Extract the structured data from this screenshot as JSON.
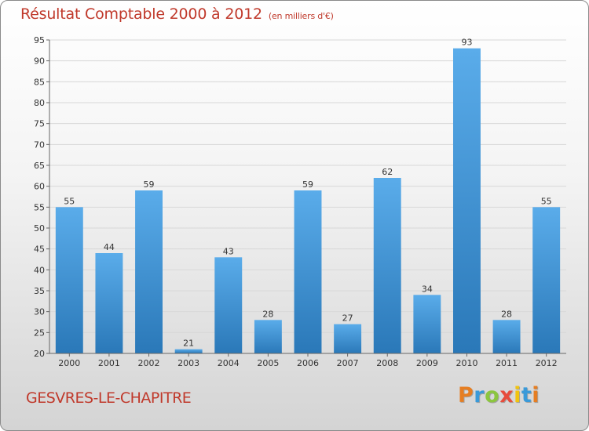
{
  "header": {
    "title": "Résultat Comptable 2000 à 2012",
    "unit": "(en milliers d'€)"
  },
  "footer": {
    "commune": "GESVRES-LE-CHAPITRE"
  },
  "logo": {
    "letters": [
      "P",
      "r",
      "o",
      "x",
      "i",
      "t",
      "i"
    ],
    "colors": [
      "#e67e22",
      "#3a9ad9",
      "#8cc63f",
      "#e74c3c",
      "#f1c40f",
      "#3a9ad9",
      "#e67e22"
    ]
  },
  "colors": {
    "bar_top": "#5aacea",
    "bar_bottom": "#2a78b8",
    "title": "#c0392b"
  },
  "chart_data": {
    "type": "bar",
    "title": "Résultat Comptable 2000 à 2012",
    "ylabel": "(en milliers d'€)",
    "xlabel": "",
    "categories": [
      "2000",
      "2001",
      "2002",
      "2003",
      "2004",
      "2005",
      "2006",
      "2007",
      "2008",
      "2009",
      "2010",
      "2011",
      "2012"
    ],
    "values": [
      55,
      44,
      59,
      21,
      43,
      28,
      59,
      27,
      62,
      34,
      93,
      28,
      55
    ],
    "ylim": [
      20,
      95
    ],
    "yticks": [
      20,
      25,
      30,
      35,
      40,
      45,
      50,
      55,
      60,
      65,
      70,
      75,
      80,
      85,
      90,
      95
    ],
    "grid": true
  }
}
